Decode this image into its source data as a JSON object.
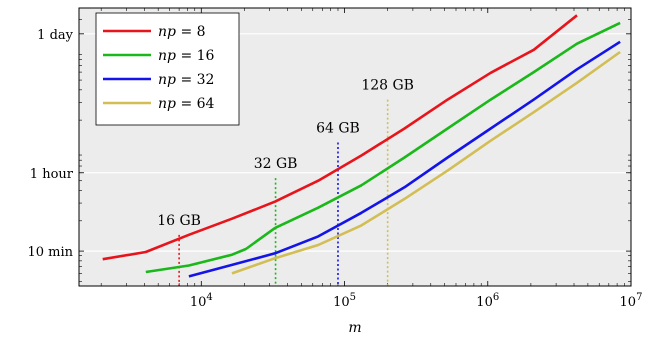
{
  "chart_data": {
    "type": "line",
    "title": "",
    "xlabel": "m",
    "ylabel": "",
    "x_scale": "log",
    "y_scale": "log",
    "xlim": [
      1400,
      10000000
    ],
    "ylim_minutes": [
      4.5,
      2600
    ],
    "grid": "horizontal",
    "legend_position": "top-left",
    "x_ticks": [
      {
        "value": 10000,
        "base": "10",
        "exp": "4"
      },
      {
        "value": 100000,
        "base": "10",
        "exp": "5"
      },
      {
        "value": 1000000,
        "base": "10",
        "exp": "6"
      },
      {
        "value": 10000000,
        "base": "10",
        "exp": "7"
      }
    ],
    "y_ticks": [
      {
        "value": 10,
        "label": "10 min"
      },
      {
        "value": 60,
        "label": "1 hour"
      },
      {
        "value": 1440,
        "label": "1 day"
      }
    ],
    "series": [
      {
        "name": "np = 8",
        "name_var": "np",
        "name_val": "8",
        "color": "#e8141c",
        "points": [
          [
            2048,
            8.3
          ],
          [
            4096,
            9.8
          ],
          [
            8192,
            14.5
          ],
          [
            16384,
            21
          ],
          [
            32768,
            31
          ],
          [
            65536,
            50
          ],
          [
            131072,
            89
          ],
          [
            262144,
            165
          ],
          [
            524288,
            320
          ],
          [
            1048576,
            590
          ],
          [
            2097152,
            1000
          ],
          [
            4194304,
            2200
          ]
        ]
      },
      {
        "name": "np = 16",
        "name_var": "np",
        "name_val": "16",
        "color": "#1ab81a",
        "points": [
          [
            4096,
            6.2
          ],
          [
            8192,
            7.2
          ],
          [
            16384,
            9.2
          ],
          [
            20480,
            10.5
          ],
          [
            32768,
            17
          ],
          [
            65536,
            27
          ],
          [
            131072,
            45
          ],
          [
            262144,
            85
          ],
          [
            524288,
            165
          ],
          [
            1048576,
            320
          ],
          [
            2097152,
            600
          ],
          [
            4194304,
            1150
          ],
          [
            8388608,
            1850
          ]
        ]
      },
      {
        "name": "np = 32",
        "name_var": "np",
        "name_val": "32",
        "color": "#1414e8",
        "points": [
          [
            8192,
            5.6
          ],
          [
            16384,
            7.3
          ],
          [
            32768,
            9.5
          ],
          [
            65536,
            14
          ],
          [
            131072,
            24
          ],
          [
            262144,
            43
          ],
          [
            524288,
            85
          ],
          [
            1048576,
            165
          ],
          [
            2097152,
            320
          ],
          [
            4194304,
            640
          ],
          [
            8388608,
            1200
          ]
        ]
      },
      {
        "name": "np = 64",
        "name_var": "np",
        "name_val": "64",
        "color": "#d2be55",
        "points": [
          [
            16384,
            6.0
          ],
          [
            32768,
            8.5
          ],
          [
            65536,
            11.5
          ],
          [
            131072,
            18
          ],
          [
            262144,
            33
          ],
          [
            524288,
            63
          ],
          [
            1048576,
            125
          ],
          [
            2097152,
            240
          ],
          [
            4194304,
            470
          ],
          [
            8388608,
            950
          ]
        ]
      }
    ],
    "annotations": [
      {
        "label": "16 GB",
        "x": 7000,
        "y_top": 14.5,
        "color": "#e8141c"
      },
      {
        "label": "32 GB",
        "x": 33000,
        "y_top": 53,
        "color": "#1ab81a"
      },
      {
        "label": "64 GB",
        "x": 90000,
        "y_top": 120,
        "color": "#1414e8"
      },
      {
        "label": "128 GB",
        "x": 200000,
        "y_top": 320,
        "color": "#d2be55"
      }
    ]
  }
}
